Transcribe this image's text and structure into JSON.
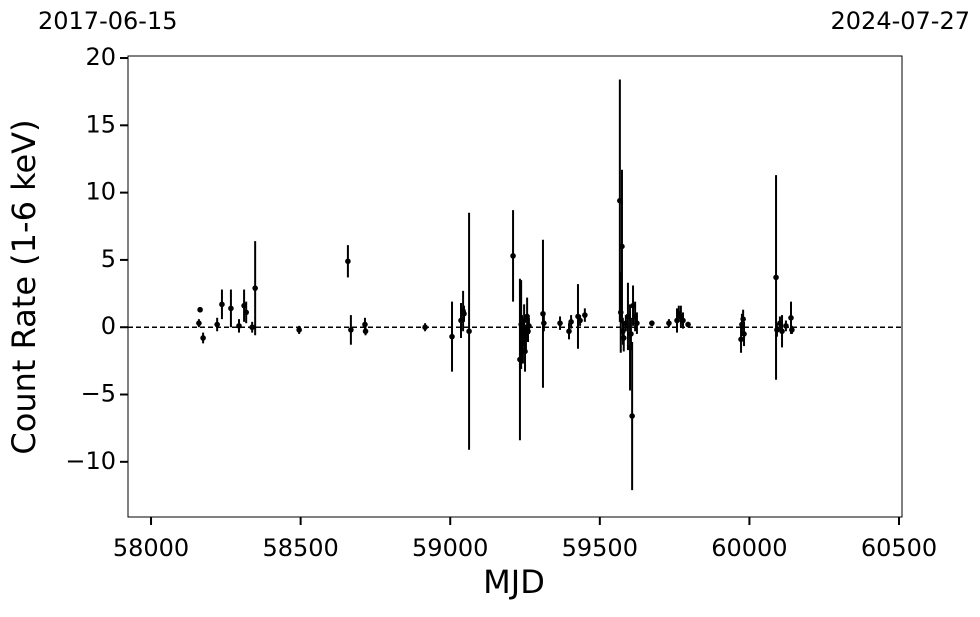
{
  "chart_data": {
    "type": "errorbar",
    "top_labels": [
      "2017-06-15",
      "2024-07-27"
    ],
    "x_label": "MJD",
    "y_label": "Count Rate (1-6 keV)",
    "xlim": [
      57923,
      60510
    ],
    "ylim": [
      -14.1,
      20.15
    ],
    "xticks": [
      58000,
      58500,
      59000,
      59500,
      60000,
      60500
    ],
    "yticks": [
      -10,
      -5,
      0,
      5,
      10,
      15,
      20
    ],
    "yticklabels": [
      {
        "value": -10,
        "label": "−10"
      },
      {
        "value": -5,
        "label": "−5"
      }
    ],
    "reference_line": 0,
    "color": "#000000",
    "series": [
      {
        "name": "data",
        "color": "#000000",
        "x": [
          58164,
          58160,
          58174,
          58221,
          58237,
          58267,
          58294,
          58311,
          58318,
          58338,
          58348,
          58495,
          58658,
          58668,
          58715,
          58717,
          58916,
          59006,
          59036,
          59043,
          59046,
          59063,
          59210,
          59233,
          59237,
          59240,
          59243,
          59247,
          59250,
          59253,
          59257,
          59260,
          59263,
          59310,
          59313,
          59367,
          59397,
          59404,
          59427,
          59434,
          59450,
          59567,
          59570,
          59574,
          59577,
          59580,
          59587,
          59594,
          59601,
          59604,
          59608,
          59611,
          59618,
          59624,
          59674,
          59731,
          59758,
          59764,
          59771,
          59778,
          59795,
          59972,
          59975,
          59979,
          59982,
          60089,
          60092,
          60102,
          60109,
          60122,
          60139,
          60142
        ],
        "values": [
          1.3,
          0.3,
          -0.8,
          0.2,
          1.7,
          1.4,
          0.1,
          1.6,
          1.1,
          0.0,
          2.9,
          -0.2,
          4.9,
          -0.2,
          0.2,
          -0.3,
          0.0,
          -0.7,
          0.5,
          1.2,
          1.0,
          -0.3,
          5.3,
          -2.4,
          0.2,
          -0.5,
          -1.2,
          0.5,
          -1.8,
          -0.8,
          0.8,
          -0.3,
          0.1,
          1.0,
          0.3,
          0.3,
          -0.3,
          0.4,
          0.8,
          0.5,
          0.9,
          9.4,
          1.1,
          6.0,
          -0.3,
          -0.8,
          0.3,
          0.8,
          -1.5,
          -0.5,
          -6.6,
          1.6,
          0.8,
          0.3,
          0.3,
          0.3,
          0.5,
          1.0,
          0.8,
          0.5,
          0.2,
          -0.9,
          0.2,
          0.6,
          -0.5,
          3.7,
          -0.2,
          0.3,
          -0.3,
          0.1,
          0.7,
          -0.2
        ],
        "errors": [
          0.2,
          0.3,
          0.4,
          0.5,
          1.1,
          1.4,
          0.5,
          1.2,
          0.8,
          0.4,
          3.5,
          0.3,
          1.2,
          1.1,
          0.5,
          0.3,
          0.3,
          2.6,
          1.3,
          1.5,
          0.6,
          8.8,
          3.4,
          6.0,
          3.3,
          1.4,
          1.5,
          1.2,
          1.5,
          1.0,
          1.4,
          0.8,
          0.6,
          5.5,
          0.6,
          0.5,
          0.6,
          0.5,
          2.4,
          0.4,
          0.5,
          9.0,
          3.0,
          5.7,
          1.0,
          1.0,
          0.6,
          2.5,
          3.2,
          1.2,
          5.5,
          1.5,
          1.1,
          0.8,
          0.2,
          0.3,
          0.9,
          0.6,
          0.8,
          0.6,
          0.2,
          1.0,
          0.8,
          0.7,
          0.9,
          7.6,
          0.5,
          0.5,
          1.2,
          0.4,
          1.2,
          0.3
        ]
      }
    ]
  }
}
